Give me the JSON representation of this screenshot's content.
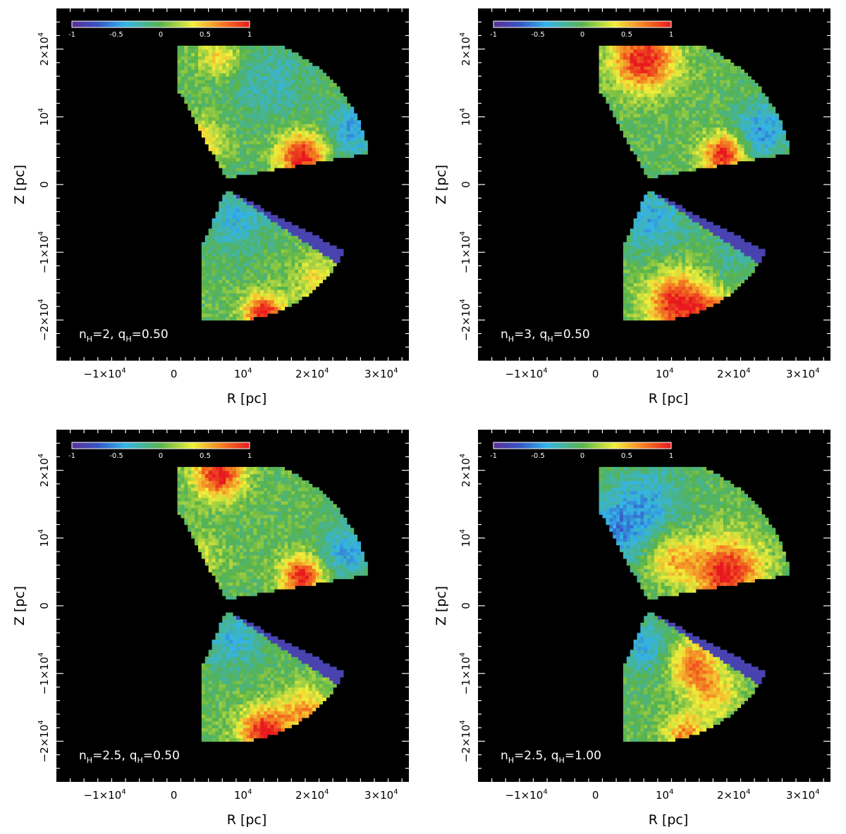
{
  "chart_data": [
    {
      "type": "heatmap",
      "annotation": {
        "n": "n",
        "n_sub": "H",
        "n_val": "=2,",
        "q": "q",
        "q_sub": "H",
        "q_val": "=0.50"
      },
      "xlabel": "R [pc]",
      "ylabel": "Z [pc]",
      "xlim": [
        -17000,
        34000
      ],
      "ylim": [
        -26000,
        26000
      ],
      "colorscale": {
        "min": -1,
        "max": 1,
        "ticks": [
          "-1",
          "-0.5",
          "0",
          "0.5",
          "1"
        ]
      },
      "hotspots": [
        {
          "r": 18500,
          "z": 4200,
          "value": 1.0,
          "size": 3500
        },
        {
          "r": 3500,
          "z": 6000,
          "value": 0.55,
          "size": 3500
        },
        {
          "r": 6500,
          "z": 19000,
          "value": 0.45,
          "size": 3000
        },
        {
          "r": 13000,
          "z": -19000,
          "value": 1.0,
          "size": 3000
        },
        {
          "r": 21000,
          "z": -14000,
          "value": 0.4,
          "size": 3500
        },
        {
          "r": 26000,
          "z": 8000,
          "value": -0.45,
          "size": 4000
        },
        {
          "r": 14000,
          "z": 15000,
          "value": -0.25,
          "size": 6000
        },
        {
          "r": 9000,
          "z": -5000,
          "value": -0.35,
          "size": 5000
        }
      ]
    },
    {
      "type": "heatmap",
      "annotation": {
        "n": "n",
        "n_sub": "H",
        "n_val": "=3,",
        "q": "q",
        "q_sub": "H",
        "q_val": "=0.50"
      },
      "xlabel": "R [pc]",
      "ylabel": "Z [pc]",
      "xlim": [
        -17000,
        34000
      ],
      "ylim": [
        -26000,
        26000
      ],
      "colorscale": {
        "min": -1,
        "max": 1,
        "ticks": [
          "-1",
          "-0.5",
          "0",
          "0.5",
          "1"
        ]
      },
      "hotspots": [
        {
          "r": 7000,
          "z": 18500,
          "value": 1.0,
          "size": 4500
        },
        {
          "r": 18500,
          "z": 4500,
          "value": 1.0,
          "size": 3000
        },
        {
          "r": 12000,
          "z": -17500,
          "value": 1.0,
          "size": 4500
        },
        {
          "r": 18000,
          "z": -20000,
          "value": 0.8,
          "size": 3500
        },
        {
          "r": 24000,
          "z": 8000,
          "value": -0.5,
          "size": 4000
        },
        {
          "r": 8000,
          "z": -5000,
          "value": -0.4,
          "size": 5000
        },
        {
          "r": 20000,
          "z": -11000,
          "value": -0.2,
          "size": 4000
        }
      ]
    },
    {
      "type": "heatmap",
      "annotation": {
        "n": "n",
        "n_sub": "H",
        "n_val": "=2.5,",
        "q": "q",
        "q_sub": "H",
        "q_val": "=0.50"
      },
      "xlabel": "R [pc]",
      "ylabel": "Z [pc]",
      "xlim": [
        -17000,
        34000
      ],
      "ylim": [
        -26000,
        26000
      ],
      "colorscale": {
        "min": -1,
        "max": 1,
        "ticks": [
          "-1",
          "-0.5",
          "0",
          "0.5",
          "1"
        ]
      },
      "hotspots": [
        {
          "r": 6500,
          "z": 19500,
          "value": 1.0,
          "size": 3500
        },
        {
          "r": 18500,
          "z": 4500,
          "value": 1.0,
          "size": 3000
        },
        {
          "r": 13000,
          "z": -18500,
          "value": 1.0,
          "size": 3500
        },
        {
          "r": 19000,
          "z": -15500,
          "value": 0.6,
          "size": 3500
        },
        {
          "r": 25000,
          "z": 8000,
          "value": -0.45,
          "size": 4000
        },
        {
          "r": 4000,
          "z": 7000,
          "value": 0.25,
          "size": 3500
        },
        {
          "r": 8500,
          "z": -5000,
          "value": -0.35,
          "size": 4500
        }
      ]
    },
    {
      "type": "heatmap",
      "annotation": {
        "n": "n",
        "n_sub": "H",
        "n_val": "=2.5,",
        "q": "q",
        "q_sub": "H",
        "q_val": "=1.00"
      },
      "xlabel": "R [pc]",
      "ylabel": "Z [pc]",
      "xlim": [
        -17000,
        34000
      ],
      "ylim": [
        -26000,
        26000
      ],
      "colorscale": {
        "min": -1,
        "max": 1,
        "ticks": [
          "-1",
          "-0.5",
          "0",
          "0.5",
          "1"
        ]
      },
      "hotspots": [
        {
          "r": 19000,
          "z": 5000,
          "value": 1.0,
          "size": 5000
        },
        {
          "r": 11000,
          "z": 7000,
          "value": 0.5,
          "size": 3500
        },
        {
          "r": 3000,
          "z": 11000,
          "value": -0.5,
          "size": 5000
        },
        {
          "r": 8000,
          "z": 16000,
          "value": -0.35,
          "size": 5000
        },
        {
          "r": 14000,
          "z": -8500,
          "value": 0.7,
          "size": 3500
        },
        {
          "r": 17000,
          "z": -13000,
          "value": 0.5,
          "size": 3500
        },
        {
          "r": 13000,
          "z": -19000,
          "value": 0.65,
          "size": 3000
        },
        {
          "r": 7000,
          "z": -6000,
          "value": -0.4,
          "size": 4000
        }
      ]
    }
  ]
}
